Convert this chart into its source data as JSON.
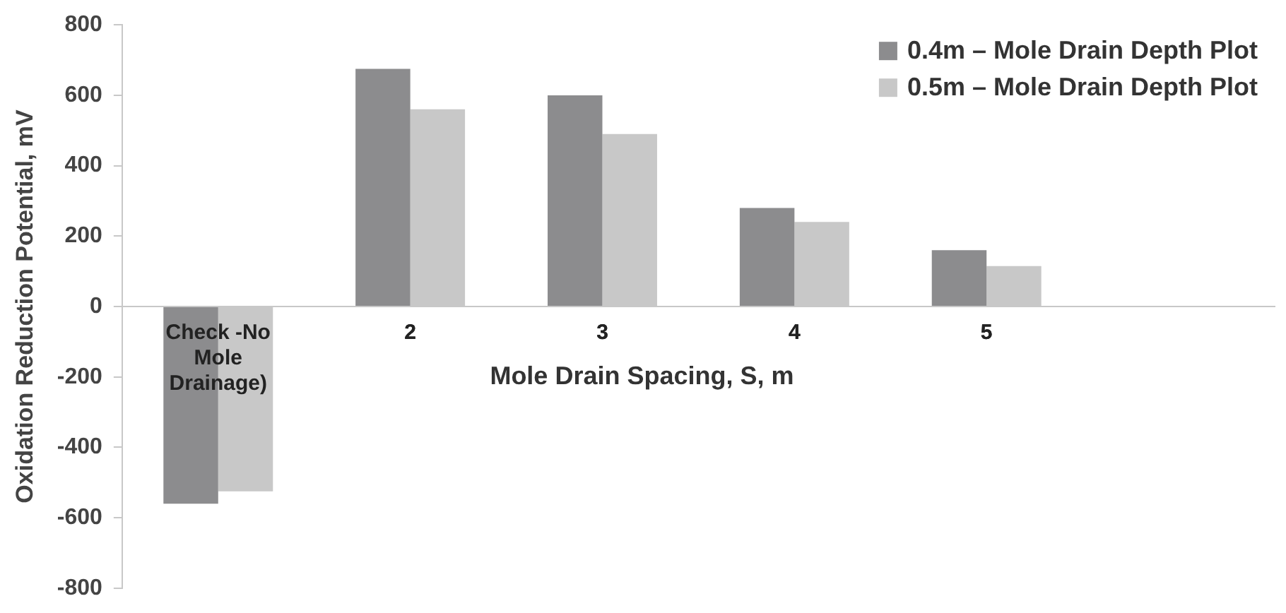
{
  "chart_data": {
    "type": "bar",
    "xlabel": "Mole Drain Spacing, S, m",
    "ylabel": "Oxidation Reduction Potential, mV",
    "categories": [
      "Check -No Mole Drainage)",
      "2",
      "3",
      "4",
      "5",
      null
    ],
    "series": [
      {
        "name": "0.4m – Mole Drain Depth Plot",
        "color": "#8c8c8e",
        "values": [
          -560,
          675,
          600,
          280,
          160,
          null
        ]
      },
      {
        "name": "0.5m – Mole Drain Depth Plot",
        "color": "#c8c8c8",
        "values": [
          -525,
          560,
          490,
          240,
          115,
          null
        ]
      }
    ],
    "ylim": [
      -800,
      800
    ],
    "yticks": [
      -800,
      -600,
      -400,
      -200,
      0,
      200,
      400,
      600,
      800
    ],
    "grid": false,
    "legend": "top right"
  }
}
